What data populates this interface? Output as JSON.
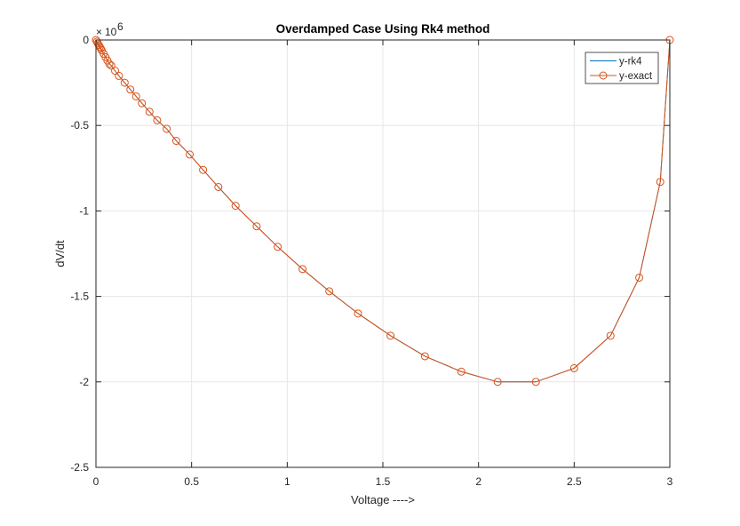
{
  "chart_data": {
    "type": "line",
    "title": "Overdamped Case Using Rk4 method",
    "xlabel": "Voltage ---->",
    "ylabel": "dV/dt",
    "xlim": [
      0,
      3
    ],
    "ylim": [
      -2.5,
      0
    ],
    "x_ticks": [
      "0",
      "0.5",
      "1",
      "1.5",
      "2",
      "2.5",
      "3"
    ],
    "y_ticks": [
      "0",
      "-0.5",
      "-1",
      "-1.5",
      "-2",
      "-2.5"
    ],
    "y_multiplier": {
      "base": "10",
      "exponent": "6"
    },
    "grid": true,
    "legend_position": "top-right",
    "series": [
      {
        "name": "y-rk4",
        "color": "#0072BD",
        "marker": "none",
        "x": [
          0,
          0.005,
          0.01,
          0.015,
          0.02,
          0.025,
          0.03,
          0.04,
          0.05,
          0.06,
          0.07,
          0.08,
          0.1,
          0.12,
          0.15,
          0.18,
          0.21,
          0.24,
          0.28,
          0.32,
          0.37,
          0.42,
          0.49,
          0.56,
          0.64,
          0.73,
          0.84,
          0.95,
          1.08,
          1.22,
          1.37,
          1.54,
          1.72,
          1.91,
          2.1,
          2.3,
          2.5,
          2.69,
          2.84,
          2.95,
          3.0
        ],
        "y": [
          0,
          -0.01,
          -0.02,
          -0.03,
          -0.04,
          -0.05,
          -0.06,
          -0.08,
          -0.1,
          -0.12,
          -0.14,
          -0.15,
          -0.18,
          -0.21,
          -0.25,
          -0.29,
          -0.33,
          -0.37,
          -0.42,
          -0.47,
          -0.52,
          -0.59,
          -0.67,
          -0.76,
          -0.86,
          -0.97,
          -1.09,
          -1.21,
          -1.34,
          -1.47,
          -1.6,
          -1.73,
          -1.85,
          -1.94,
          -2.0,
          -2.0,
          -1.92,
          -1.73,
          -1.39,
          -0.83,
          0
        ]
      },
      {
        "name": "y-exact",
        "color": "#D95319",
        "marker": "circle",
        "x": [
          0,
          0.005,
          0.01,
          0.015,
          0.02,
          0.025,
          0.03,
          0.04,
          0.05,
          0.06,
          0.07,
          0.08,
          0.1,
          0.12,
          0.15,
          0.18,
          0.21,
          0.24,
          0.28,
          0.32,
          0.37,
          0.42,
          0.49,
          0.56,
          0.64,
          0.73,
          0.84,
          0.95,
          1.08,
          1.22,
          1.37,
          1.54,
          1.72,
          1.91,
          2.1,
          2.3,
          2.5,
          2.69,
          2.84,
          2.95,
          3.0
        ],
        "y": [
          0,
          -0.01,
          -0.02,
          -0.03,
          -0.04,
          -0.05,
          -0.06,
          -0.08,
          -0.1,
          -0.12,
          -0.14,
          -0.15,
          -0.18,
          -0.21,
          -0.25,
          -0.29,
          -0.33,
          -0.37,
          -0.42,
          -0.47,
          -0.52,
          -0.59,
          -0.67,
          -0.76,
          -0.86,
          -0.97,
          -1.09,
          -1.21,
          -1.34,
          -1.47,
          -1.6,
          -1.73,
          -1.85,
          -1.94,
          -2.0,
          -2.0,
          -1.92,
          -1.73,
          -1.39,
          -0.83,
          0
        ]
      }
    ]
  }
}
